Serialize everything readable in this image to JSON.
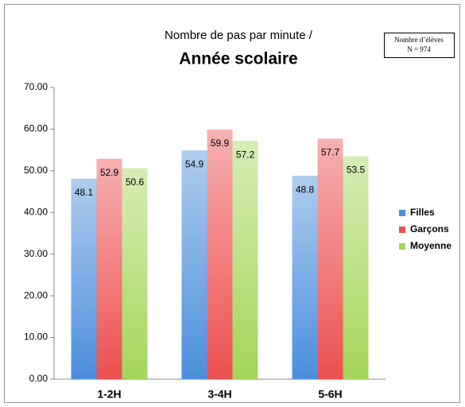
{
  "chart_data": {
    "type": "bar",
    "title": "Nombre de pas par minute /",
    "subtitle": "Année scolaire",
    "annotations": [
      "Nombre d’élèves",
      "N = 974"
    ],
    "categories": [
      "1-2H",
      "3-4H",
      "5-6H"
    ],
    "series": [
      {
        "name": "Filles",
        "color": "#4a8fdc",
        "values": [
          48.1,
          54.9,
          48.8
        ]
      },
      {
        "name": "Garçons",
        "color": "#ec5050",
        "values": [
          52.9,
          59.9,
          57.7
        ]
      },
      {
        "name": "Moyenne",
        "color": "#a4d65a",
        "values": [
          50.6,
          57.2,
          53.5
        ]
      }
    ],
    "ylim": [
      0,
      70
    ],
    "yticks": [
      {
        "value": 0,
        "label": "0.00"
      },
      {
        "value": 10,
        "label": "10.00"
      },
      {
        "value": 20,
        "label": "20.00"
      },
      {
        "value": 30,
        "label": "30.00"
      },
      {
        "value": 40,
        "label": "40.00"
      },
      {
        "value": 50,
        "label": "50.00"
      },
      {
        "value": 60,
        "label": "60.00"
      },
      {
        "value": 70,
        "label": "70.00"
      }
    ],
    "grid": false,
    "legend": "right"
  }
}
